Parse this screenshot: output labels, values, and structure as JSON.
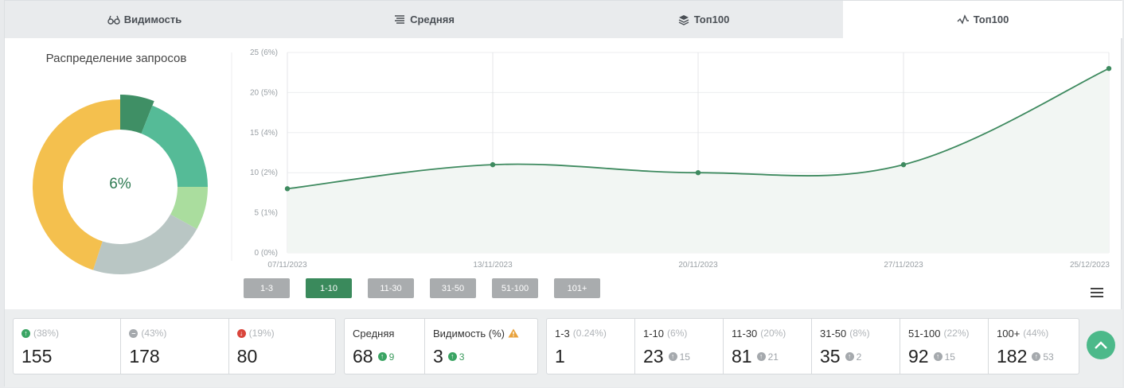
{
  "tabs": [
    {
      "label": "Видимость",
      "icon": "glasses-icon",
      "active": false
    },
    {
      "label": "Средняя",
      "icon": "lines-icon",
      "active": false
    },
    {
      "label": "Топ100",
      "icon": "layers-icon",
      "active": false
    },
    {
      "label": "Топ100",
      "icon": "activity-icon",
      "active": true
    }
  ],
  "donut": {
    "title": "Распределение запросов",
    "center_label": "6%",
    "segments": [
      {
        "value": 6,
        "color": "#3f8f65"
      },
      {
        "value": 19,
        "color": "#55bb97"
      },
      {
        "value": 8,
        "color": "#aadd9e"
      },
      {
        "value": 22,
        "color": "#b9c6c4"
      },
      {
        "value": 45,
        "color": "#f4c04e"
      }
    ]
  },
  "chart_data": {
    "type": "area",
    "x": [
      "07/11/2023",
      "13/11/2023",
      "20/11/2023",
      "27/11/2023",
      "25/12/2023"
    ],
    "y": [
      8,
      11,
      10,
      11,
      23
    ],
    "yticks": [
      "0 (0%)",
      "5 (1%)",
      "10 (2%)",
      "15 (4%)",
      "20 (5%)",
      "25 (6%)"
    ],
    "ylim": [
      0,
      25
    ],
    "line_color": "#3e8a5f",
    "fill_color": "#f2f6f3",
    "grid": true
  },
  "ranges": [
    {
      "label": "1-3",
      "active": false
    },
    {
      "label": "1-10",
      "active": true
    },
    {
      "label": "11-30",
      "active": false
    },
    {
      "label": "31-50",
      "active": false
    },
    {
      "label": "51-100",
      "active": false
    },
    {
      "label": "101+",
      "active": false
    }
  ],
  "stats": {
    "changes": [
      {
        "icon": "up-circle-icon",
        "pct": "(38%)",
        "value": "155"
      },
      {
        "icon": "minus-circle-icon",
        "pct": "(43%)",
        "value": "178"
      },
      {
        "icon": "down-circle-icon",
        "pct": "(19%)",
        "value": "80"
      }
    ],
    "avg": {
      "label": "Средняя",
      "value": "68",
      "delta": "9"
    },
    "visibility": {
      "label": "Видимость (%)",
      "value": "3",
      "delta": "3"
    },
    "top": [
      {
        "label": "1-3",
        "pct": "(0.24%)",
        "value": "1",
        "delta": ""
      },
      {
        "label": "1-10",
        "pct": "(6%)",
        "value": "23",
        "delta": "15"
      },
      {
        "label": "11-30",
        "pct": "(20%)",
        "value": "81",
        "delta": "21"
      },
      {
        "label": "31-50",
        "pct": "(8%)",
        "value": "35",
        "delta": "2"
      },
      {
        "label": "51-100",
        "pct": "(22%)",
        "value": "92",
        "delta": "15"
      },
      {
        "label": "100+",
        "pct": "(44%)",
        "value": "182",
        "delta": "53"
      }
    ]
  }
}
